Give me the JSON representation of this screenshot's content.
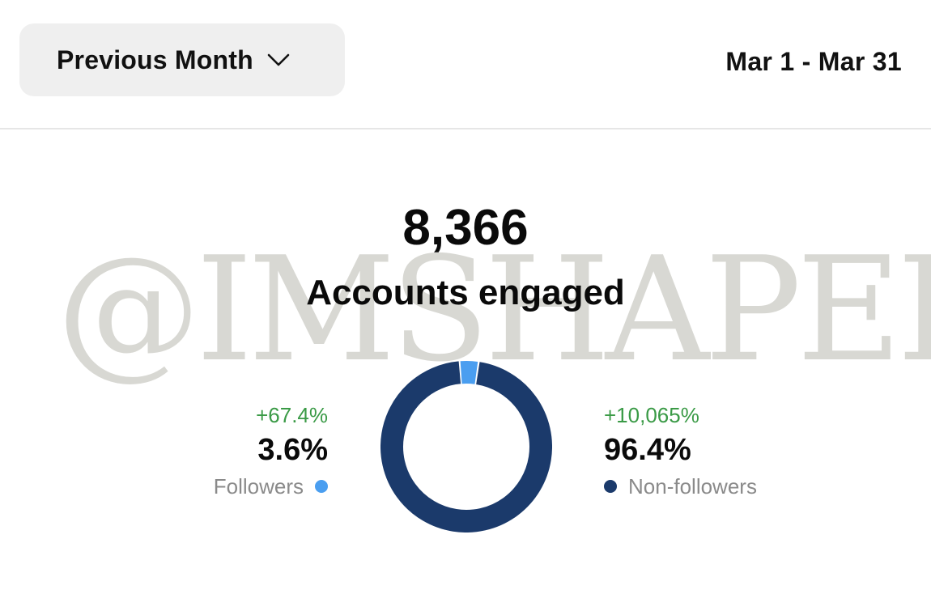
{
  "header": {
    "period_label": "Previous Month",
    "date_range": "Mar 1 - Mar 31"
  },
  "watermark": "@IMSHAPEI",
  "metric": {
    "value": "8,366",
    "label": "Accounts engaged"
  },
  "breakdown": {
    "followers": {
      "change": "+67.4%",
      "percent": "3.6%",
      "label": "Followers",
      "fraction": 0.036,
      "color": "#4a9ef0"
    },
    "non_followers": {
      "change": "+10,065%",
      "percent": "96.4%",
      "label": "Non-followers",
      "fraction": 0.964,
      "color": "#1b3a6b"
    }
  },
  "colors": {
    "accent_green": "#3a9a46",
    "button_bg": "#efefef"
  },
  "icons": {
    "period_dropdown": "chevron-down-icon"
  }
}
